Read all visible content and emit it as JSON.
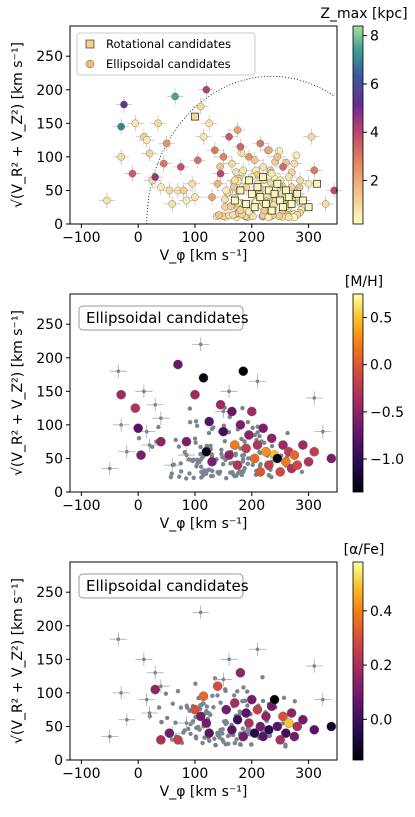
{
  "panels": [
    {
      "id": "top",
      "type": "scatter",
      "legend": {
        "rotational": "Rotational candidates",
        "ellipsoidal": "Ellipsoidal candidates"
      },
      "colorbar": {
        "label": "Z_max [kpc]",
        "ticks": [
          2,
          4,
          6,
          8
        ],
        "range": [
          0.2,
          8.4
        ],
        "colormap": "magma_r"
      },
      "xlabel": "V_φ [km s⁻¹]",
      "ylabel": "√(V_R² + V_Z²) [km s⁻¹]",
      "xticks": [
        -100,
        0,
        100,
        200,
        300
      ],
      "yticks": [
        0,
        50,
        100,
        150,
        200,
        250
      ],
      "xlim": [
        -120,
        350
      ],
      "ylim": [
        0,
        295
      ],
      "dotted_curve_radius": 220
    },
    {
      "id": "middle",
      "type": "scatter",
      "box_title": "Ellipsoidal candidates",
      "colorbar": {
        "label": "[M/H]",
        "ticks": [
          -1.0,
          -0.5,
          0.0,
          0.5
        ],
        "tick_labels": [
          "−1.0",
          "−0.5",
          "0.0",
          "0.5"
        ],
        "range": [
          -1.35,
          0.75
        ],
        "colormap": "inferno"
      },
      "xlabel": "V_φ [km s⁻¹]",
      "ylabel": "√(V_R² + V_Z²) [km s⁻¹]",
      "xticks": [
        -100,
        0,
        100,
        200,
        300
      ],
      "yticks": [
        0,
        50,
        100,
        150,
        200,
        250
      ],
      "xlim": [
        -120,
        350
      ],
      "ylim": [
        0,
        295
      ]
    },
    {
      "id": "bottom",
      "type": "scatter",
      "box_title": "Ellipsoidal candidates",
      "colorbar": {
        "label": "[α/Fe]",
        "ticks": [
          0.0,
          0.2,
          0.4
        ],
        "tick_labels": [
          "0.0",
          "0.2",
          "0.4"
        ],
        "range": [
          -0.15,
          0.58
        ],
        "colormap": "inferno"
      },
      "xlabel": "V_φ [km s⁻¹]",
      "ylabel": "√(V_R² + V_Z²) [km s⁻¹]",
      "xticks": [
        -100,
        0,
        100,
        200,
        300
      ],
      "yticks": [
        0,
        50,
        100,
        150,
        200,
        250
      ],
      "xlim": [
        -120,
        350
      ],
      "ylim": [
        0,
        295
      ]
    }
  ],
  "chart_data": [
    {
      "type": "scatter",
      "panel": "top",
      "xlabel": "V_φ [km s⁻¹]",
      "ylabel": "√(V_R² + V_Z²) [km s⁻¹]",
      "xlim": [
        -120,
        350
      ],
      "ylim": [
        0,
        295
      ],
      "colorbar_label": "Z_max [kpc]",
      "series": [
        {
          "name": "Ellipsoidal candidates",
          "marker": "circle",
          "points": [
            [
              -55,
              35,
              0.8
            ],
            [
              -30,
              100,
              1.0
            ],
            [
              -25,
              178,
              5.5
            ],
            [
              -30,
              145,
              7.0
            ],
            [
              -10,
              75,
              3.5
            ],
            [
              -5,
              150,
              0.7
            ],
            [
              10,
              130,
              1.2
            ],
            [
              15,
              125,
              0.6
            ],
            [
              20,
              105,
              1.1
            ],
            [
              25,
              65,
              0.9
            ],
            [
              30,
              70,
              4.5
            ],
            [
              35,
              150,
              1.0
            ],
            [
              40,
              55,
              0.6
            ],
            [
              45,
              90,
              3.0
            ],
            [
              50,
              120,
              2.5
            ],
            [
              55,
              50,
              1.0
            ],
            [
              60,
              30,
              0.8
            ],
            [
              65,
              190,
              7.5
            ],
            [
              70,
              50,
              0.7
            ],
            [
              75,
              85,
              3.8
            ],
            [
              80,
              50,
              1.2
            ],
            [
              85,
              35,
              0.6
            ],
            [
              95,
              60,
              0.9
            ],
            [
              100,
              40,
              0.8
            ],
            [
              105,
              95,
              3.2
            ],
            [
              110,
              175,
              1.0
            ],
            [
              115,
              130,
              0.7
            ],
            [
              120,
              200,
              4.2
            ],
            [
              125,
              150,
              0.8
            ],
            [
              130,
              40,
              2.2
            ],
            [
              135,
              110,
              3.0
            ],
            [
              140,
              60,
              1.8
            ],
            [
              145,
              75,
              4.0
            ],
            [
              150,
              100,
              2.8
            ],
            [
              155,
              50,
              0.6
            ],
            [
              160,
              130,
              3.6
            ],
            [
              165,
              90,
              1.0
            ],
            [
              170,
              65,
              0.9
            ],
            [
              175,
              140,
              2.2
            ],
            [
              180,
              115,
              3.4
            ],
            [
              185,
              80,
              0.7
            ],
            [
              190,
              55,
              1.1
            ],
            [
              195,
              100,
              2.5
            ],
            [
              200,
              70,
              0.5
            ],
            [
              205,
              95,
              1.4
            ],
            [
              210,
              60,
              0.6
            ],
            [
              215,
              120,
              3.0
            ],
            [
              220,
              85,
              0.8
            ],
            [
              225,
              45,
              0.5
            ],
            [
              230,
              110,
              2.0
            ],
            [
              235,
              75,
              0.7
            ],
            [
              240,
              50,
              0.4
            ],
            [
              245,
              100,
              1.5
            ],
            [
              250,
              65,
              0.6
            ],
            [
              255,
              85,
              3.3
            ],
            [
              260,
              40,
              0.5
            ],
            [
              265,
              70,
              0.8
            ],
            [
              270,
              55,
              1.2
            ],
            [
              275,
              90,
              0.9
            ],
            [
              280,
              45,
              0.6
            ],
            [
              285,
              65,
              1.0
            ],
            [
              290,
              35,
              0.5
            ],
            [
              300,
              60,
              0.7
            ],
            [
              305,
              130,
              1.0
            ],
            [
              310,
              80,
              3.0
            ],
            [
              330,
              30,
              1.0
            ],
            [
              345,
              50,
              4.0
            ]
          ]
        },
        {
          "name": "Rotational candidates",
          "marker": "square",
          "points": [
            [
              170,
              35,
              0.3
            ],
            [
              180,
              50,
              0.4
            ],
            [
              190,
              30,
              0.3
            ],
            [
              195,
              65,
              0.4
            ],
            [
              200,
              45,
              0.3
            ],
            [
              205,
              25,
              0.3
            ],
            [
              210,
              55,
              0.4
            ],
            [
              215,
              40,
              0.3
            ],
            [
              220,
              70,
              0.4
            ],
            [
              225,
              30,
              0.3
            ],
            [
              230,
              50,
              0.3
            ],
            [
              235,
              20,
              0.3
            ],
            [
              240,
              45,
              0.4
            ],
            [
              245,
              60,
              0.3
            ],
            [
              250,
              35,
              0.3
            ],
            [
              255,
              25,
              0.3
            ],
            [
              260,
              50,
              0.4
            ],
            [
              265,
              40,
              0.3
            ],
            [
              270,
              30,
              0.3
            ],
            [
              280,
              45,
              0.4
            ],
            [
              290,
              35,
              0.3
            ],
            [
              300,
              25,
              0.3
            ],
            [
              315,
              60,
              0.4
            ],
            [
              100,
              160,
              1.0
            ]
          ]
        }
      ]
    },
    {
      "type": "scatter",
      "panel": "middle",
      "xlabel": "V_φ [km s⁻¹]",
      "ylabel": "√(V_R² + V_Z²) [km s⁻¹]",
      "xlim": [
        -120,
        350
      ],
      "ylim": [
        0,
        295
      ],
      "colorbar_label": "[M/H]",
      "series": [
        {
          "name": "Ellipsoidal candidates",
          "marker": "circle",
          "points": [
            [
              -30,
              145,
              -0.4
            ],
            [
              -5,
              125,
              -0.3
            ],
            [
              0,
              95,
              -0.8
            ],
            [
              5,
              55,
              -0.6
            ],
            [
              40,
              75,
              -0.5
            ],
            [
              70,
              190,
              -0.7
            ],
            [
              85,
              75,
              -0.6
            ],
            [
              100,
              145,
              -0.4
            ],
            [
              115,
              170,
              -1.3
            ],
            [
              120,
              60,
              -1.3
            ],
            [
              125,
              105,
              -0.8
            ],
            [
              130,
              45,
              -0.6
            ],
            [
              145,
              130,
              -0.4
            ],
            [
              150,
              90,
              -0.9
            ],
            [
              160,
              55,
              -0.5
            ],
            [
              165,
              120,
              -0.7
            ],
            [
              170,
              70,
              0.2
            ],
            [
              175,
              40,
              -0.3
            ],
            [
              180,
              100,
              -0.6
            ],
            [
              185,
              180,
              -1.35
            ],
            [
              190,
              65,
              -0.2
            ],
            [
              195,
              85,
              -0.5
            ],
            [
              200,
              120,
              -0.4
            ],
            [
              205,
              50,
              0.1
            ],
            [
              210,
              70,
              -0.3
            ],
            [
              215,
              30,
              0.0
            ],
            [
              220,
              95,
              -0.6
            ],
            [
              225,
              60,
              0.3
            ],
            [
              230,
              40,
              -0.2
            ],
            [
              235,
              80,
              -0.5
            ],
            [
              240,
              55,
              0.5
            ],
            [
              245,
              50,
              -1.3
            ],
            [
              250,
              30,
              -0.1
            ],
            [
              255,
              70,
              -0.4
            ],
            [
              260,
              45,
              0.2
            ],
            [
              265,
              60,
              -0.2
            ],
            [
              270,
              35,
              -0.3
            ],
            [
              275,
              55,
              0.1
            ],
            [
              280,
              40,
              -0.1
            ],
            [
              290,
              70,
              -0.4
            ],
            [
              300,
              45,
              -0.3
            ],
            [
              340,
              50,
              -0.6
            ],
            [
              310,
              60,
              -0.2
            ]
          ]
        }
      ]
    },
    {
      "type": "scatter",
      "panel": "bottom",
      "xlabel": "V_φ [km s⁻¹]",
      "ylabel": "√(V_R² + V_Z²) [km s⁻¹]",
      "xlim": [
        -120,
        350
      ],
      "ylim": [
        0,
        295
      ],
      "colorbar_label": "[α/Fe]",
      "series": [
        {
          "name": "Ellipsoidal candidates",
          "marker": "circle",
          "points": [
            [
              30,
              105,
              0.15
            ],
            [
              40,
              30,
              0.2
            ],
            [
              55,
              40,
              0.1
            ],
            [
              70,
              30,
              0.25
            ],
            [
              100,
              75,
              0.3
            ],
            [
              110,
              65,
              0.1
            ],
            [
              115,
              95,
              0.35
            ],
            [
              120,
              55,
              0.1
            ],
            [
              125,
              40,
              0.05
            ],
            [
              140,
              110,
              0.3
            ],
            [
              155,
              75,
              0.1
            ],
            [
              165,
              45,
              0.05
            ],
            [
              170,
              85,
              0.2
            ],
            [
              175,
              60,
              0.0
            ],
            [
              180,
              130,
              0.15
            ],
            [
              185,
              35,
              0.1
            ],
            [
              190,
              70,
              0.05
            ],
            [
              195,
              55,
              0.2
            ],
            [
              200,
              90,
              0.1
            ],
            [
              205,
              40,
              -0.05
            ],
            [
              210,
              75,
              0.25
            ],
            [
              215,
              50,
              0.1
            ],
            [
              220,
              35,
              0.05
            ],
            [
              225,
              65,
              0.15
            ],
            [
              230,
              45,
              -0.05
            ],
            [
              235,
              80,
              0.1
            ],
            [
              240,
              90,
              -0.15
            ],
            [
              245,
              50,
              0.05
            ],
            [
              250,
              30,
              0.2
            ],
            [
              255,
              65,
              0.3
            ],
            [
              260,
              40,
              0.0
            ],
            [
              265,
              55,
              0.5
            ],
            [
              270,
              70,
              0.15
            ],
            [
              275,
              35,
              0.1
            ],
            [
              280,
              50,
              0.2
            ],
            [
              290,
              60,
              0.1
            ],
            [
              310,
              45,
              0.05
            ],
            [
              340,
              50,
              -0.1
            ]
          ]
        }
      ]
    }
  ]
}
